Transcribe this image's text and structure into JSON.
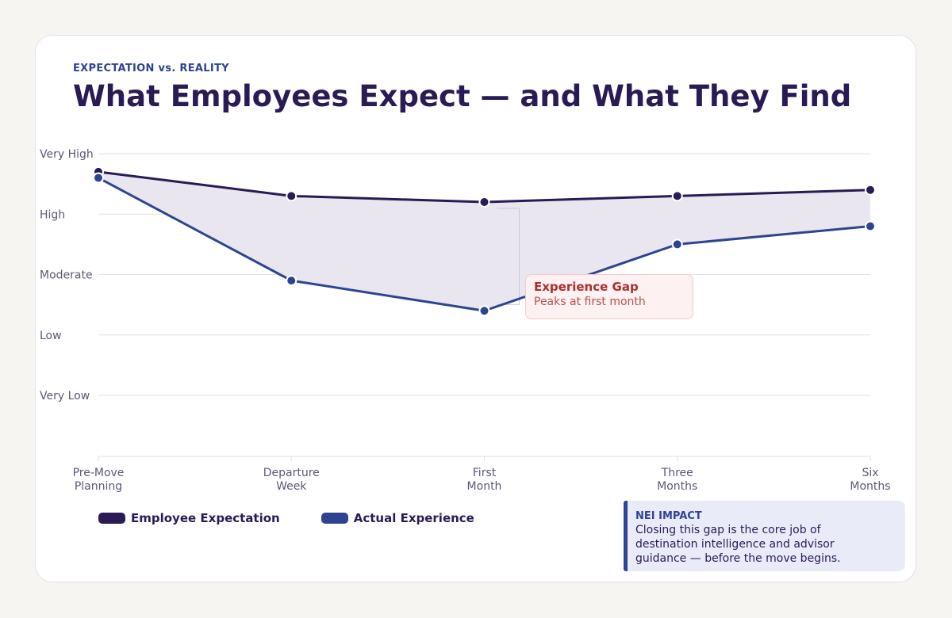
{
  "header": {
    "eyebrow": "EXPECTATION vs. REALITY",
    "title": "What Employees Expect — and What They Find"
  },
  "callout": {
    "title": "Experience Gap",
    "subtitle": "Peaks at first month"
  },
  "impact": {
    "title": "NEI IMPACT",
    "lines": [
      "Closing this gap is the core job of",
      "destination intelligence and advisor",
      "guidance — before the move begins."
    ]
  },
  "colors": {
    "expectation": "#2a1a55",
    "actual": "#2d4590",
    "gap_fill": "#e8e5ee",
    "grid": "#e2e0e8",
    "callout_text": "#a8302f"
  },
  "chart_data": {
    "type": "line",
    "title": "What Employees Expect — and What They Find",
    "categories": [
      [
        "Pre-Move",
        "Planning"
      ],
      [
        "Departure",
        "Week"
      ],
      [
        "First",
        "Month"
      ],
      [
        "Three",
        "Months"
      ],
      [
        "Six",
        "Months"
      ]
    ],
    "y_levels": [
      "Very Low",
      "Low",
      "Moderate",
      "High",
      "Very High"
    ],
    "ylim": [
      1,
      5
    ],
    "series": [
      {
        "name": "Employee Expectation",
        "values": [
          4.7,
          4.3,
          4.2,
          4.3,
          4.4
        ]
      },
      {
        "name": "Actual Experience",
        "values": [
          4.6,
          2.9,
          2.4,
          3.5,
          3.8
        ]
      }
    ],
    "gap_shaded": true,
    "grid": true,
    "legend": "bottom-left"
  }
}
